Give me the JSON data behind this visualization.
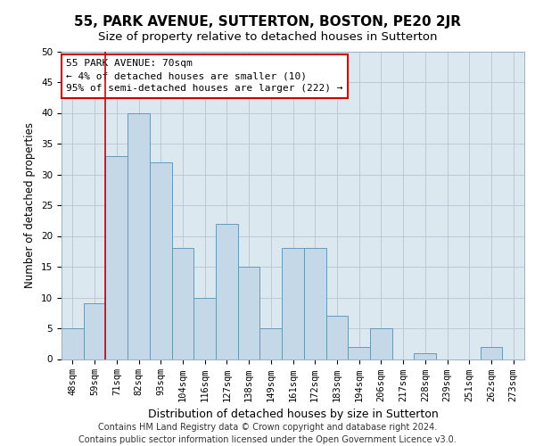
{
  "title": "55, PARK AVENUE, SUTTERTON, BOSTON, PE20 2JR",
  "subtitle": "Size of property relative to detached houses in Sutterton",
  "xlabel": "Distribution of detached houses by size in Sutterton",
  "ylabel": "Number of detached properties",
  "categories": [
    "48sqm",
    "59sqm",
    "71sqm",
    "82sqm",
    "93sqm",
    "104sqm",
    "116sqm",
    "127sqm",
    "138sqm",
    "149sqm",
    "161sqm",
    "172sqm",
    "183sqm",
    "194sqm",
    "206sqm",
    "217sqm",
    "228sqm",
    "239sqm",
    "251sqm",
    "262sqm",
    "273sqm"
  ],
  "values": [
    5,
    9,
    33,
    40,
    32,
    18,
    10,
    22,
    15,
    5,
    18,
    18,
    7,
    2,
    5,
    0,
    1,
    0,
    0,
    2,
    0
  ],
  "bar_color": "#c5d8e8",
  "bar_edge_color": "#6699bb",
  "grid_color": "#c0c8d8",
  "background_color": "#dce8f0",
  "annotation_text": "55 PARK AVENUE: 70sqm\n← 4% of detached houses are smaller (10)\n95% of semi-detached houses are larger (222) →",
  "annotation_box_color": "#ffffff",
  "annotation_box_edge_color": "#cc0000",
  "vline_x": 1.5,
  "vline_color": "#cc0000",
  "ylim": [
    0,
    50
  ],
  "yticks": [
    0,
    5,
    10,
    15,
    20,
    25,
    30,
    35,
    40,
    45,
    50
  ],
  "footer": "Contains HM Land Registry data © Crown copyright and database right 2024.\nContains public sector information licensed under the Open Government Licence v3.0.",
  "title_fontsize": 11,
  "subtitle_fontsize": 9.5,
  "ylabel_fontsize": 8.5,
  "xlabel_fontsize": 9,
  "tick_fontsize": 7.5,
  "footer_fontsize": 7
}
